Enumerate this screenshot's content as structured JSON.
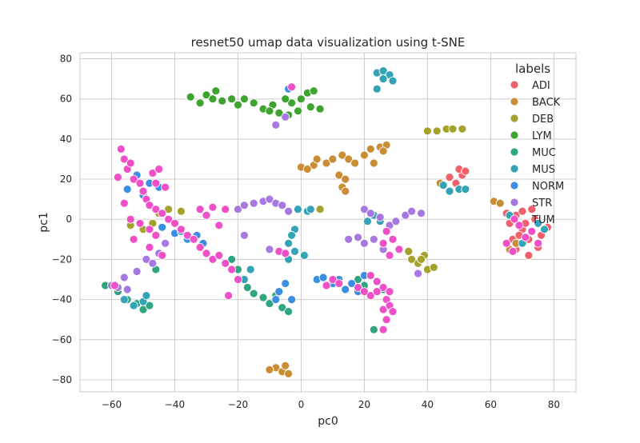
{
  "chart_data": {
    "type": "scatter",
    "title": "resnet50 umap data visualization using t-SNE",
    "xlabel": "pc0",
    "ylabel": "pc1",
    "xlim": [
      -70,
      87
    ],
    "ylim": [
      -86,
      83
    ],
    "xticks": [
      -60,
      -40,
      -20,
      0,
      20,
      40,
      60,
      80
    ],
    "yticks": [
      -80,
      -60,
      -40,
      -20,
      0,
      20,
      40,
      60,
      80
    ],
    "xtick_labels": [
      "−60",
      "−40",
      "−20",
      "0",
      "20",
      "40",
      "60",
      "80"
    ],
    "ytick_labels": [
      "−80",
      "−60",
      "−40",
      "−20",
      "0",
      "20",
      "40",
      "60",
      "80"
    ],
    "grid": true,
    "legend": {
      "title": "labels",
      "placement": "top-right"
    },
    "series": [
      {
        "name": "ADI",
        "color": "#f0616d",
        "points": [
          [
            66,
            -2
          ],
          [
            68,
            2
          ],
          [
            70,
            -5
          ],
          [
            72,
            -10
          ],
          [
            74,
            0
          ],
          [
            70,
            4
          ],
          [
            68,
            -15
          ],
          [
            72,
            -18
          ],
          [
            76,
            -8
          ],
          [
            67,
            -10
          ],
          [
            78,
            -4
          ],
          [
            65,
            3
          ],
          [
            73,
            5
          ],
          [
            69,
            -8
          ],
          [
            75,
            -14
          ],
          [
            71,
            -2
          ],
          [
            49,
            18
          ],
          [
            51,
            22
          ],
          [
            50,
            25
          ],
          [
            47,
            21
          ],
          [
            52,
            24
          ]
        ]
      },
      {
        "name": "BACK",
        "color": "#c98e35",
        "points": [
          [
            0,
            26
          ],
          [
            4,
            27
          ],
          [
            8,
            28
          ],
          [
            10,
            30
          ],
          [
            13,
            32
          ],
          [
            15,
            30
          ],
          [
            17,
            28
          ],
          [
            20,
            32
          ],
          [
            22,
            35
          ],
          [
            25,
            36
          ],
          [
            27,
            37
          ],
          [
            26,
            34
          ],
          [
            23,
            28
          ],
          [
            12,
            22
          ],
          [
            14,
            20
          ],
          [
            13,
            16
          ],
          [
            14,
            14
          ],
          [
            5,
            30
          ],
          [
            2,
            25
          ],
          [
            -8,
            -74
          ],
          [
            -6,
            -76
          ],
          [
            -4,
            -77
          ],
          [
            -10,
            -75
          ],
          [
            -5,
            -73
          ],
          [
            44,
            18
          ],
          [
            61,
            9
          ],
          [
            63,
            8
          ],
          [
            66,
            -15
          ],
          [
            68,
            -12
          ]
        ]
      },
      {
        "name": "DEB",
        "color": "#a4a12d",
        "points": [
          [
            40,
            44
          ],
          [
            43,
            44
          ],
          [
            46,
            45
          ],
          [
            48,
            45
          ],
          [
            51,
            45
          ],
          [
            35,
            -20
          ],
          [
            37,
            -22
          ],
          [
            39,
            -18
          ],
          [
            40,
            -25
          ],
          [
            42,
            -24
          ],
          [
            34,
            -16
          ],
          [
            38,
            -20
          ],
          [
            -54,
            -3
          ],
          [
            -50,
            -5
          ],
          [
            -45,
            3
          ],
          [
            -42,
            5
          ],
          [
            -38,
            4
          ],
          [
            6,
            5
          ],
          [
            -47,
            -2
          ]
        ]
      },
      {
        "name": "LYM",
        "color": "#3da42f",
        "points": [
          [
            -35,
            61
          ],
          [
            -32,
            58
          ],
          [
            -30,
            62
          ],
          [
            -28,
            60
          ],
          [
            -27,
            64
          ],
          [
            -25,
            59
          ],
          [
            -22,
            60
          ],
          [
            -20,
            57
          ],
          [
            -18,
            60
          ],
          [
            -15,
            58
          ],
          [
            -12,
            55
          ],
          [
            -9,
            57
          ],
          [
            -7,
            53
          ],
          [
            -4,
            52
          ],
          [
            -1,
            54
          ],
          [
            -3,
            58
          ],
          [
            0,
            60
          ],
          [
            2,
            63
          ],
          [
            4,
            64
          ],
          [
            -5,
            60
          ],
          [
            3,
            56
          ],
          [
            6,
            55
          ],
          [
            -10,
            54
          ]
        ]
      },
      {
        "name": "MUC",
        "color": "#2fa582",
        "points": [
          [
            -62,
            -33
          ],
          [
            -58,
            -36
          ],
          [
            -55,
            -40
          ],
          [
            -52,
            -42
          ],
          [
            -50,
            -45
          ],
          [
            -48,
            -43
          ],
          [
            -46,
            -25
          ],
          [
            -15,
            -37
          ],
          [
            -12,
            -39
          ],
          [
            -10,
            -42
          ],
          [
            -8,
            -38
          ],
          [
            -6,
            -44
          ],
          [
            -4,
            -46
          ],
          [
            -17,
            -34
          ],
          [
            18,
            -30
          ],
          [
            20,
            -33
          ],
          [
            22,
            -28
          ],
          [
            23,
            -55
          ],
          [
            26,
            -35
          ],
          [
            -22,
            -20
          ],
          [
            -20,
            -25
          ]
        ]
      },
      {
        "name": "MUS",
        "color": "#33a3b5",
        "points": [
          [
            24,
            73
          ],
          [
            26,
            74
          ],
          [
            28,
            72
          ],
          [
            29,
            69
          ],
          [
            26,
            70
          ],
          [
            24,
            65
          ],
          [
            -2,
            -5
          ],
          [
            -3,
            -8
          ],
          [
            -4,
            -12
          ],
          [
            -2,
            -16
          ],
          [
            -4,
            -20
          ],
          [
            1,
            -18
          ],
          [
            2,
            4
          ],
          [
            -1,
            5
          ],
          [
            3,
            5
          ],
          [
            -56,
            -40
          ],
          [
            -53,
            -43
          ],
          [
            -50,
            -41
          ],
          [
            -49,
            -38
          ],
          [
            45,
            17
          ],
          [
            50,
            15
          ],
          [
            47,
            14
          ],
          [
            52,
            15
          ],
          [
            66,
            2
          ],
          [
            77,
            -5
          ],
          [
            75,
            -2
          ],
          [
            70,
            -12
          ],
          [
            21,
            -1
          ],
          [
            23,
            2
          ],
          [
            25,
            -1
          ],
          [
            -18,
            -30
          ],
          [
            -16,
            -25
          ]
        ]
      },
      {
        "name": "NORM",
        "color": "#3c8ee0",
        "points": [
          [
            -4,
            65
          ],
          [
            -55,
            15
          ],
          [
            -52,
            22
          ],
          [
            -50,
            12
          ],
          [
            -48,
            18
          ],
          [
            -45,
            16
          ],
          [
            -44,
            -4
          ],
          [
            -40,
            -7
          ],
          [
            -38,
            -6
          ],
          [
            -36,
            -10
          ],
          [
            -33,
            -8
          ],
          [
            -31,
            -12
          ],
          [
            -7,
            -36
          ],
          [
            -5,
            -32
          ],
          [
            -3,
            -40
          ],
          [
            -8,
            -40
          ],
          [
            5,
            -30
          ],
          [
            7,
            -29
          ],
          [
            10,
            -32
          ],
          [
            12,
            -30
          ],
          [
            14,
            -35
          ],
          [
            16,
            -32
          ],
          [
            18,
            -36
          ],
          [
            20,
            -28
          ]
        ]
      },
      {
        "name": "STR",
        "color": "#a778e2",
        "points": [
          [
            -8,
            47
          ],
          [
            -5,
            51
          ],
          [
            -20,
            5
          ],
          [
            -18,
            7
          ],
          [
            -15,
            8
          ],
          [
            -12,
            9
          ],
          [
            -10,
            10
          ],
          [
            -8,
            8
          ],
          [
            -6,
            7
          ],
          [
            -4,
            4
          ],
          [
            20,
            5
          ],
          [
            22,
            3
          ],
          [
            25,
            1
          ],
          [
            28,
            -3
          ],
          [
            30,
            -1
          ],
          [
            33,
            2
          ],
          [
            35,
            4
          ],
          [
            38,
            3
          ],
          [
            15,
            -10
          ],
          [
            18,
            -9
          ],
          [
            20,
            -12
          ],
          [
            23,
            -10
          ],
          [
            26,
            -15
          ],
          [
            -56,
            -29
          ],
          [
            -52,
            -26
          ],
          [
            -49,
            -20
          ],
          [
            -45,
            -17
          ],
          [
            -43,
            -12
          ],
          [
            -58,
            -34
          ],
          [
            -18,
            -8
          ],
          [
            -10,
            -15
          ],
          [
            -7,
            -16
          ],
          [
            37,
            -27
          ],
          [
            -60,
            -33
          ],
          [
            -55,
            -35
          ],
          [
            -47,
            -22
          ]
        ]
      },
      {
        "name": "TUM",
        "color": "#f050c7",
        "points": [
          [
            -3,
            66
          ],
          [
            -57,
            35
          ],
          [
            -56,
            30
          ],
          [
            -55,
            25
          ],
          [
            -54,
            28
          ],
          [
            -53,
            20
          ],
          [
            -51,
            18
          ],
          [
            -50,
            14
          ],
          [
            -49,
            10
          ],
          [
            -48,
            7
          ],
          [
            -46,
            5
          ],
          [
            -44,
            3
          ],
          [
            -42,
            0
          ],
          [
            -40,
            -2
          ],
          [
            -38,
            -5
          ],
          [
            -36,
            -8
          ],
          [
            -34,
            -10
          ],
          [
            -32,
            -14
          ],
          [
            -30,
            -17
          ],
          [
            -28,
            -20
          ],
          [
            -26,
            -18
          ],
          [
            -24,
            -22
          ],
          [
            -22,
            -25
          ],
          [
            -20,
            -30
          ],
          [
            -24,
            5
          ],
          [
            -28,
            6
          ],
          [
            -32,
            5
          ],
          [
            -30,
            2
          ],
          [
            -26,
            -3
          ],
          [
            -56,
            8
          ],
          [
            -54,
            0
          ],
          [
            -51,
            -2
          ],
          [
            -48,
            -5
          ],
          [
            -46,
            -8
          ],
          [
            -53,
            -10
          ],
          [
            -48,
            -14
          ],
          [
            -44,
            -18
          ],
          [
            -47,
            23
          ],
          [
            -46,
            18
          ],
          [
            -43,
            16
          ],
          [
            -45,
            25
          ],
          [
            -58,
            21
          ],
          [
            22,
            -28
          ],
          [
            24,
            -31
          ],
          [
            26,
            -34
          ],
          [
            28,
            -36
          ],
          [
            27,
            -40
          ],
          [
            26,
            -45
          ],
          [
            27,
            -50
          ],
          [
            26,
            -55
          ],
          [
            28,
            -43
          ],
          [
            29,
            -46
          ],
          [
            22,
            -38
          ],
          [
            24,
            -36
          ],
          [
            18,
            -34
          ],
          [
            20,
            -36
          ],
          [
            -7,
            -16
          ],
          [
            -5,
            -17
          ],
          [
            27,
            -6
          ],
          [
            29,
            -10
          ],
          [
            26,
            -12
          ],
          [
            31,
            -15
          ],
          [
            28,
            -18
          ],
          [
            10,
            -30
          ],
          [
            12,
            -32
          ],
          [
            8,
            -33
          ],
          [
            65,
            -12
          ],
          [
            67,
            -16
          ],
          [
            73,
            -6
          ],
          [
            75,
            -12
          ],
          [
            69,
            -3
          ],
          [
            71,
            -9
          ],
          [
            -23,
            -38
          ],
          [
            -59,
            -33
          ]
        ]
      }
    ]
  }
}
